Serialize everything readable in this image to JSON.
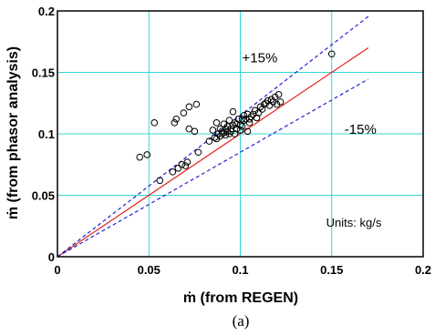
{
  "chart_data": {
    "type": "scatter",
    "xlabel": "ṁ (from REGEN)",
    "ylabel": "ṁ (from phasor analysis)",
    "xlim": [
      0,
      0.2
    ],
    "ylim": [
      0,
      0.2
    ],
    "x_ticks": [
      "0",
      "0.05",
      "0.1",
      "0.15",
      "0.2"
    ],
    "y_ticks": [
      "0",
      "0.05",
      "0.1",
      "0.15",
      "0.2"
    ],
    "grid": true,
    "caption": "(a)",
    "units_note": "Units: kg/s",
    "annotations": [
      {
        "text": "+15%",
        "x": 0.101,
        "y": 0.158
      },
      {
        "text": "-15%",
        "x": 0.157,
        "y": 0.1
      }
    ],
    "lines": [
      {
        "name": "parity",
        "style": "solid",
        "color": "#e8231c",
        "x": [
          0,
          0.17
        ],
        "y": [
          0,
          0.17
        ]
      },
      {
        "name": "plus15",
        "style": "dashed",
        "color": "#1f22d6",
        "x": [
          0,
          0.17
        ],
        "y": [
          0,
          0.1955
        ]
      },
      {
        "name": "minus15",
        "style": "dashed",
        "color": "#1f22d6",
        "x": [
          0,
          0.17
        ],
        "y": [
          0,
          0.1445
        ]
      }
    ],
    "points": [
      [
        0.045,
        0.081
      ],
      [
        0.049,
        0.083
      ],
      [
        0.053,
        0.109
      ],
      [
        0.056,
        0.062
      ],
      [
        0.063,
        0.069
      ],
      [
        0.064,
        0.109
      ],
      [
        0.065,
        0.112
      ],
      [
        0.066,
        0.072
      ],
      [
        0.068,
        0.075
      ],
      [
        0.069,
        0.117
      ],
      [
        0.07,
        0.074
      ],
      [
        0.071,
        0.077
      ],
      [
        0.072,
        0.104
      ],
      [
        0.072,
        0.122
      ],
      [
        0.075,
        0.102
      ],
      [
        0.076,
        0.124
      ],
      [
        0.077,
        0.085
      ],
      [
        0.083,
        0.094
      ],
      [
        0.085,
        0.103
      ],
      [
        0.086,
        0.097
      ],
      [
        0.087,
        0.096
      ],
      [
        0.087,
        0.109
      ],
      [
        0.088,
        0.1
      ],
      [
        0.089,
        0.098
      ],
      [
        0.089,
        0.104
      ],
      [
        0.09,
        0.102
      ],
      [
        0.09,
        0.1
      ],
      [
        0.091,
        0.108
      ],
      [
        0.091,
        0.101
      ],
      [
        0.092,
        0.099
      ],
      [
        0.092,
        0.104
      ],
      [
        0.093,
        0.102
      ],
      [
        0.093,
        0.106
      ],
      [
        0.094,
        0.1
      ],
      [
        0.094,
        0.111
      ],
      [
        0.095,
        0.104
      ],
      [
        0.095,
        0.102
      ],
      [
        0.096,
        0.107
      ],
      [
        0.096,
        0.118
      ],
      [
        0.097,
        0.1
      ],
      [
        0.097,
        0.109
      ],
      [
        0.098,
        0.104
      ],
      [
        0.098,
        0.108
      ],
      [
        0.099,
        0.112
      ],
      [
        0.1,
        0.107
      ],
      [
        0.1,
        0.103
      ],
      [
        0.101,
        0.106
      ],
      [
        0.101,
        0.112
      ],
      [
        0.102,
        0.111
      ],
      [
        0.102,
        0.115
      ],
      [
        0.103,
        0.112
      ],
      [
        0.104,
        0.102
      ],
      [
        0.104,
        0.116
      ],
      [
        0.105,
        0.109
      ],
      [
        0.105,
        0.112
      ],
      [
        0.106,
        0.114
      ],
      [
        0.107,
        0.116
      ],
      [
        0.108,
        0.119
      ],
      [
        0.109,
        0.113
      ],
      [
        0.11,
        0.117
      ],
      [
        0.111,
        0.122
      ],
      [
        0.112,
        0.12
      ],
      [
        0.113,
        0.124
      ],
      [
        0.114,
        0.125
      ],
      [
        0.115,
        0.127
      ],
      [
        0.116,
        0.123
      ],
      [
        0.117,
        0.128
      ],
      [
        0.118,
        0.126
      ],
      [
        0.119,
        0.13
      ],
      [
        0.12,
        0.124
      ],
      [
        0.121,
        0.132
      ],
      [
        0.122,
        0.126
      ],
      [
        0.15,
        0.165
      ]
    ]
  }
}
